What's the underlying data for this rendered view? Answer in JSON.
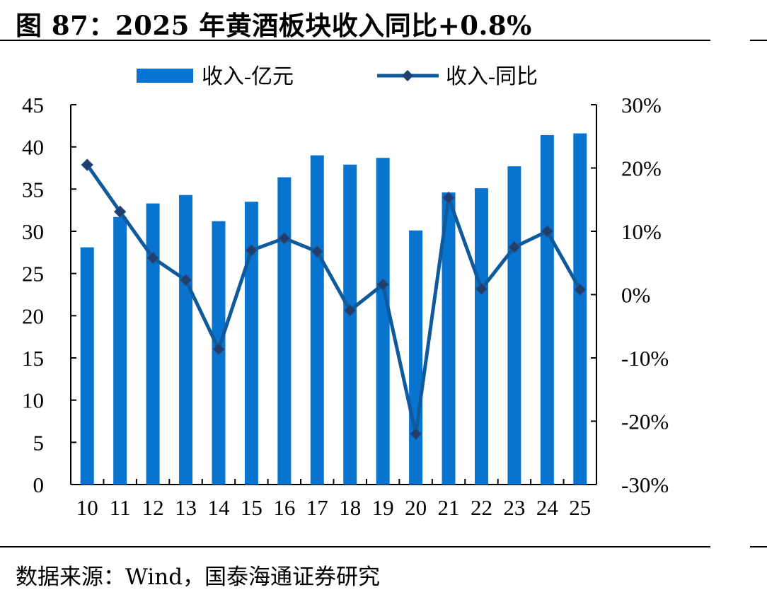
{
  "title": "图 87：2025 年黄酒板块收入同比+0.8%",
  "source": "数据来源：Wind，国泰海通证券研究",
  "colors": {
    "bar": "#0874D0",
    "line": "#0E5A9C",
    "marker": "#1F3F6E",
    "axis": "#000000"
  },
  "chart_data": {
    "type": "bar",
    "categories": [
      "10",
      "11",
      "12",
      "13",
      "14",
      "15",
      "16",
      "17",
      "18",
      "19",
      "20",
      "21",
      "22",
      "23",
      "24",
      "25"
    ],
    "legend_position": "top",
    "grid": false,
    "series": [
      {
        "name": "收入-亿元",
        "type": "bar",
        "axis": "left",
        "values": [
          28.1,
          31.7,
          33.3,
          34.3,
          31.2,
          33.5,
          36.4,
          39.0,
          37.9,
          38.7,
          30.1,
          34.6,
          35.1,
          37.7,
          41.4,
          41.6
        ]
      },
      {
        "name": "收入-同比",
        "type": "line",
        "axis": "right",
        "marker": "diamond",
        "values": [
          20.5,
          13.1,
          5.8,
          2.3,
          -8.6,
          7.0,
          8.9,
          6.8,
          -2.5,
          1.6,
          -22.0,
          15.3,
          0.9,
          7.5,
          10.0,
          0.8
        ]
      }
    ],
    "yaxis_left": {
      "min": 0,
      "max": 45,
      "step": 5,
      "tick_labels": [
        "0",
        "5",
        "10",
        "15",
        "20",
        "25",
        "30",
        "35",
        "40",
        "45"
      ]
    },
    "yaxis_right": {
      "min": -30,
      "max": 30,
      "step": 10,
      "tick_labels": [
        "-30%",
        "-20%",
        "-10%",
        "0%",
        "10%",
        "20%",
        "30%"
      ]
    }
  }
}
